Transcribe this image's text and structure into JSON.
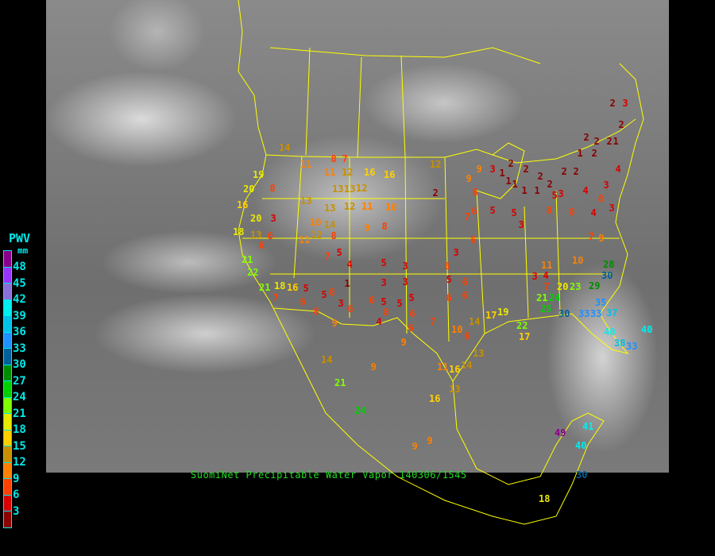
{
  "caption": "SuomiNet Precipitable Water Vapor 140306/1545",
  "legend": {
    "title": "PWV",
    "units": "mm",
    "labels": [
      "48",
      "45",
      "42",
      "39",
      "36",
      "33",
      "30",
      "27",
      "24",
      "21",
      "18",
      "15",
      "12",
      "9",
      "6",
      "3"
    ],
    "colors": [
      "#8b008b",
      "#9933ff",
      "#8870d8",
      "#00eeee",
      "#00c0e8",
      "#1e90ff",
      "#00609a",
      "#008c00",
      "#00d000",
      "#80ff00",
      "#e8e800",
      "#ffd000",
      "#c89000",
      "#ff8000",
      "#ff4000",
      "#d80000",
      "#8b0000"
    ]
  },
  "colors": {
    "borders": "#ffff00",
    "caption": "#22dd22",
    "legend_text": "#00e8e8"
  },
  "stations": [
    "2",
    "3",
    "2",
    "2",
    "2",
    "2",
    "1",
    "1",
    "2",
    "4",
    "2",
    "2",
    "3",
    "4",
    "3",
    "5",
    "2",
    "2",
    "3",
    "1",
    "1",
    "1",
    "1",
    "1",
    "2",
    "2",
    "12",
    "9",
    "9",
    "2",
    "6",
    "6",
    "5",
    "7",
    "5",
    "3",
    "8",
    "8",
    "4",
    "7",
    "9",
    "8",
    "3",
    "14",
    "8",
    "7",
    "11",
    "12",
    "16",
    "16",
    "11",
    "19",
    "20",
    "8",
    "16",
    "20",
    "3",
    "18",
    "13",
    "6",
    "6",
    "13",
    "10",
    "14",
    "12",
    "11",
    "8",
    "12",
    "13",
    "13",
    "13",
    "12",
    "11",
    "10",
    "9",
    "8",
    "7",
    "5",
    "4",
    "5",
    "3",
    "6",
    "21",
    "22",
    "21",
    "18",
    "16",
    "7",
    "5",
    "5",
    "6",
    "8",
    "8",
    "1",
    "3",
    "3",
    "5",
    "5",
    "3",
    "5",
    "6",
    "9",
    "6",
    "6",
    "4",
    "8",
    "6",
    "7",
    "6",
    "6",
    "5",
    "3",
    "6",
    "6",
    "14",
    "17",
    "19",
    "10",
    "9",
    "9",
    "6",
    "14",
    "21",
    "24",
    "16",
    "13",
    "11",
    "16",
    "14",
    "13",
    "9",
    "9",
    "10",
    "28",
    "30",
    "29",
    "23",
    "20",
    "7",
    "4",
    "3",
    "11",
    "21",
    "24",
    "25",
    "30",
    "33",
    "35",
    "37",
    "33",
    "40",
    "38",
    "33",
    "40",
    "41",
    "40",
    "30",
    "18",
    "49",
    "22",
    "17"
  ]
}
